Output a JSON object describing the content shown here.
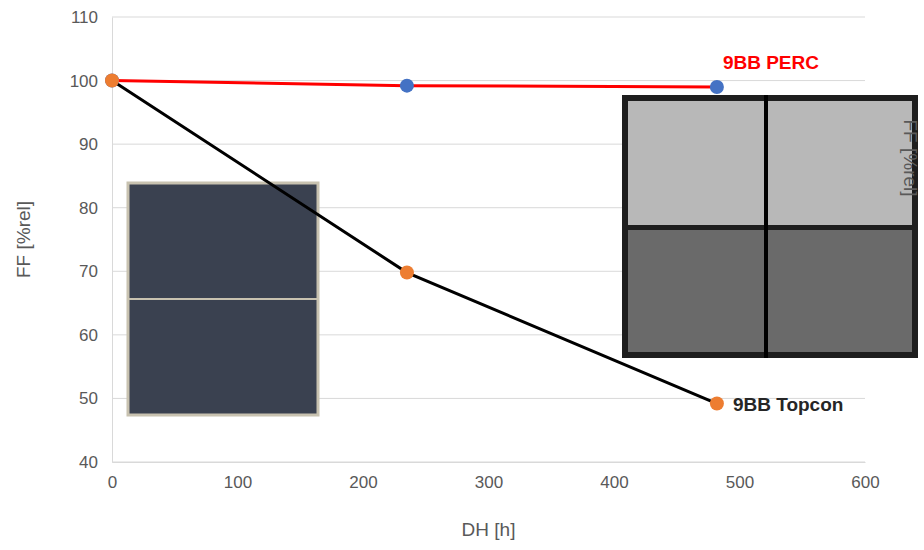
{
  "chart_data": {
    "type": "line",
    "xlabel": "DH [h]",
    "ylabel": "FF [%rel]",
    "y2label": "FF [%rel]",
    "x": [
      0,
      235,
      482
    ],
    "series": [
      {
        "name": "9BB PERC",
        "color": "#ff0000",
        "marker": "circle",
        "colors": [
          "#4472c4",
          "#4472c4",
          "#4472c4"
        ],
        "values": [
          100,
          99.2,
          99
        ]
      },
      {
        "name": "9BB Topcon",
        "color": "#000000",
        "marker": "circle",
        "colors": [
          "#ed7d31",
          "#ed7d31",
          "#ed7d31"
        ],
        "values": [
          100,
          69.8,
          49.2
        ]
      }
    ],
    "xlim": [
      0,
      600
    ],
    "xticks": [
      0,
      100,
      200,
      300,
      400,
      500,
      600
    ],
    "ylim": [
      40,
      110
    ],
    "yticks": [
      40,
      50,
      60,
      70,
      80,
      90,
      100,
      110
    ],
    "grid": true
  }
}
